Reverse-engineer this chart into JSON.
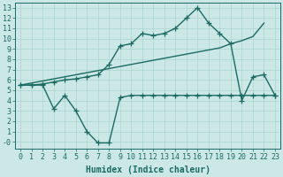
{
  "bg_color": "#cce8e6",
  "grid_color": "#aad4d0",
  "line_color": "#1a6b63",
  "line_width": 1.0,
  "marker": "+",
  "markersize": 4,
  "markeredgewidth": 0.9,
  "xlabel": "Humidex (Indice chaleur)",
  "xlabel_fontsize": 7,
  "tick_fontsize": 6,
  "xlim": [
    -0.5,
    23.5
  ],
  "ylim": [
    -0.7,
    13.5
  ],
  "xticks": [
    0,
    1,
    2,
    3,
    4,
    5,
    6,
    7,
    8,
    9,
    10,
    11,
    12,
    13,
    14,
    15,
    16,
    17,
    18,
    19,
    20,
    21,
    22,
    23
  ],
  "yticks": [
    0,
    1,
    2,
    3,
    4,
    5,
    6,
    7,
    8,
    9,
    10,
    11,
    12,
    13
  ],
  "ytick_labels": [
    "-0",
    "1",
    "2",
    "3",
    "4",
    "5",
    "6",
    "7",
    "8",
    "9",
    "10",
    "11",
    "12",
    "13"
  ],
  "line1_x": [
    0,
    1,
    2,
    3,
    4,
    5,
    6,
    7,
    8,
    9,
    10,
    11,
    12,
    13,
    14,
    15,
    16,
    17,
    18,
    19,
    20,
    21,
    22,
    23
  ],
  "line1_y": [
    5.5,
    5.5,
    5.6,
    5.8,
    6.0,
    6.1,
    6.3,
    6.5,
    7.5,
    9.3,
    9.5,
    10.5,
    10.3,
    10.5,
    11.0,
    12.0,
    13.0,
    11.5,
    10.5,
    9.5,
    4.0,
    6.3,
    6.5,
    4.5
  ],
  "line2_x": [
    0,
    1,
    2,
    3,
    4,
    5,
    6,
    7,
    8,
    9,
    10,
    11,
    12,
    13,
    14,
    15,
    16,
    17,
    18,
    19,
    20,
    21,
    22
  ],
  "line2_y": [
    5.5,
    5.7,
    5.9,
    6.1,
    6.3,
    6.5,
    6.7,
    6.9,
    7.1,
    7.3,
    7.5,
    7.7,
    7.9,
    8.1,
    8.3,
    8.5,
    8.7,
    8.9,
    9.1,
    9.5,
    9.8,
    10.2,
    11.5
  ],
  "line3_x": [
    0,
    1,
    2,
    3,
    4,
    5,
    6,
    7,
    8,
    9,
    10,
    11,
    12,
    13,
    14,
    15,
    16,
    17,
    18,
    19,
    20,
    21,
    22,
    23
  ],
  "line3_y": [
    5.5,
    5.5,
    5.5,
    3.2,
    4.5,
    3.0,
    1.0,
    -0.1,
    -0.1,
    4.3,
    4.5,
    4.5,
    4.5,
    4.5,
    4.5,
    4.5,
    4.5,
    4.5,
    4.5,
    4.5,
    4.5,
    4.5,
    4.5,
    4.5
  ]
}
